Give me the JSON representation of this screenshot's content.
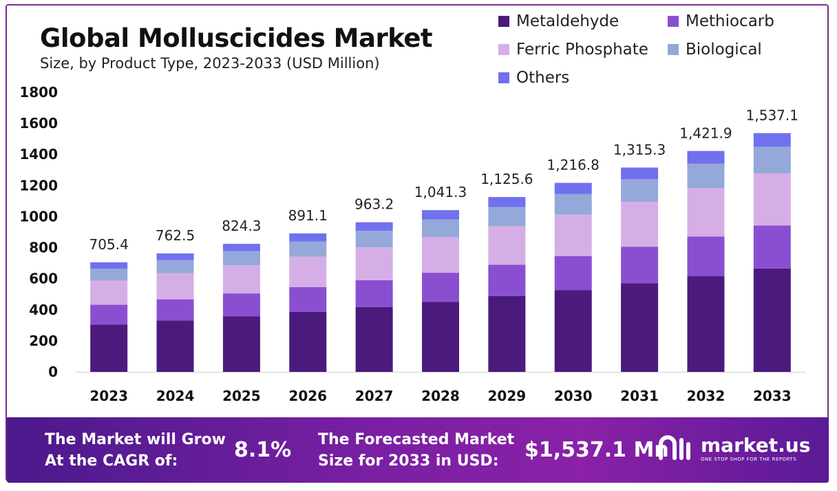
{
  "header": {
    "title": "Global Molluscicides Market",
    "subtitle": "Size, by Product Type, 2023-2033 (USD Million)"
  },
  "legend": [
    {
      "name": "Metaldehyde",
      "color": "#4a1a7d"
    },
    {
      "name": "Methiocarb",
      "color": "#8a4fd0"
    },
    {
      "name": "Ferric Phosphate",
      "color": "#d6aee6"
    },
    {
      "name": "Biological",
      "color": "#94a8d9"
    },
    {
      "name": "Others",
      "color": "#7170ee"
    }
  ],
  "chart_data": {
    "type": "bar",
    "stacked": true,
    "categories": [
      "2023",
      "2024",
      "2025",
      "2026",
      "2027",
      "2028",
      "2029",
      "2030",
      "2031",
      "2032",
      "2033"
    ],
    "totals_labels": [
      "705.4",
      "762.5",
      "824.3",
      "891.1",
      "963.2",
      "1,041.3",
      "1,125.6",
      "1,216.8",
      "1,315.3",
      "1,421.9",
      "1,537.1"
    ],
    "ylim": [
      0,
      1800
    ],
    "yticks": [
      "0",
      "200",
      "400",
      "600",
      "800",
      "1000",
      "1200",
      "1400",
      "1600",
      "1800"
    ],
    "series": [
      {
        "name": "Metaldehyde",
        "values": [
          305,
          330,
          357,
          386,
          417,
          451,
          488,
          527,
          570,
          616,
          666
        ]
      },
      {
        "name": "Methiocarb",
        "values": [
          127,
          137,
          148,
          160,
          173,
          187,
          202,
          218,
          236,
          255,
          276
        ]
      },
      {
        "name": "Ferric Phosphate",
        "values": [
          155,
          168,
          181,
          196,
          212,
          229,
          247,
          267,
          289,
          312,
          337
        ]
      },
      {
        "name": "Biological",
        "values": [
          78,
          84,
          91,
          98,
          106,
          115,
          124,
          134,
          145,
          157,
          170
        ]
      },
      {
        "name": "Others",
        "values": [
          40.4,
          43.5,
          47.3,
          51.1,
          55.2,
          59.3,
          64.6,
          70.8,
          75.3,
          81.9,
          88.1
        ]
      }
    ],
    "grid": false,
    "legend_position": "top-right"
  },
  "footer": {
    "cagr_label_line1": "The Market will Grow",
    "cagr_label_line2": "At the CAGR of:",
    "cagr_value": "8.1%",
    "forecast_label_line1": "The Forecasted Market",
    "forecast_label_line2": "Size for 2033 in USD:",
    "forecast_value": "$1,537.1 Mn",
    "brand_name": "market.us",
    "brand_tagline": "ONE STOP SHOP FOR THE REPORTS"
  }
}
